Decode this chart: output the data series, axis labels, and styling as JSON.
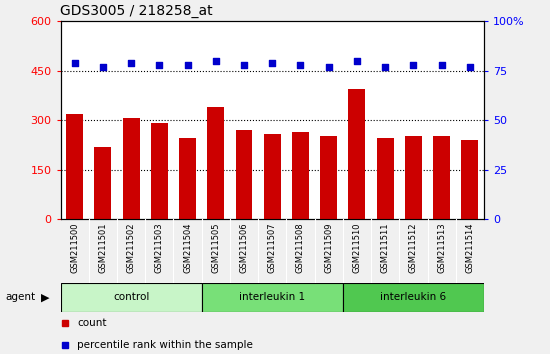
{
  "title": "GDS3005 / 218258_at",
  "samples": [
    "GSM211500",
    "GSM211501",
    "GSM211502",
    "GSM211503",
    "GSM211504",
    "GSM211505",
    "GSM211506",
    "GSM211507",
    "GSM211508",
    "GSM211509",
    "GSM211510",
    "GSM211511",
    "GSM211512",
    "GSM211513",
    "GSM211514"
  ],
  "counts": [
    320,
    220,
    308,
    292,
    248,
    340,
    272,
    258,
    265,
    252,
    395,
    248,
    252,
    252,
    240
  ],
  "percentile_ranks": [
    79,
    77,
    79,
    78,
    78,
    80,
    78,
    79,
    78,
    77,
    80,
    77,
    78,
    78,
    77
  ],
  "groups": [
    {
      "label": "control",
      "start": 0,
      "end": 5,
      "color": "#c8f5c8"
    },
    {
      "label": "interleukin 1",
      "start": 5,
      "end": 10,
      "color": "#78e078"
    },
    {
      "label": "interleukin 6",
      "start": 10,
      "end": 15,
      "color": "#50c850"
    }
  ],
  "agent_label": "agent",
  "bar_color": "#cc0000",
  "dot_color": "#0000cc",
  "left_ylim": [
    0,
    600
  ],
  "right_ylim": [
    0,
    100
  ],
  "left_yticks": [
    0,
    150,
    300,
    450,
    600
  ],
  "right_yticks": [
    0,
    25,
    50,
    75,
    100
  ],
  "grid_values": [
    150,
    300,
    450
  ],
  "tick_bg_color": "#d0d0d0",
  "plot_bg_color": "#ffffff",
  "fig_bg_color": "#f0f0f0"
}
